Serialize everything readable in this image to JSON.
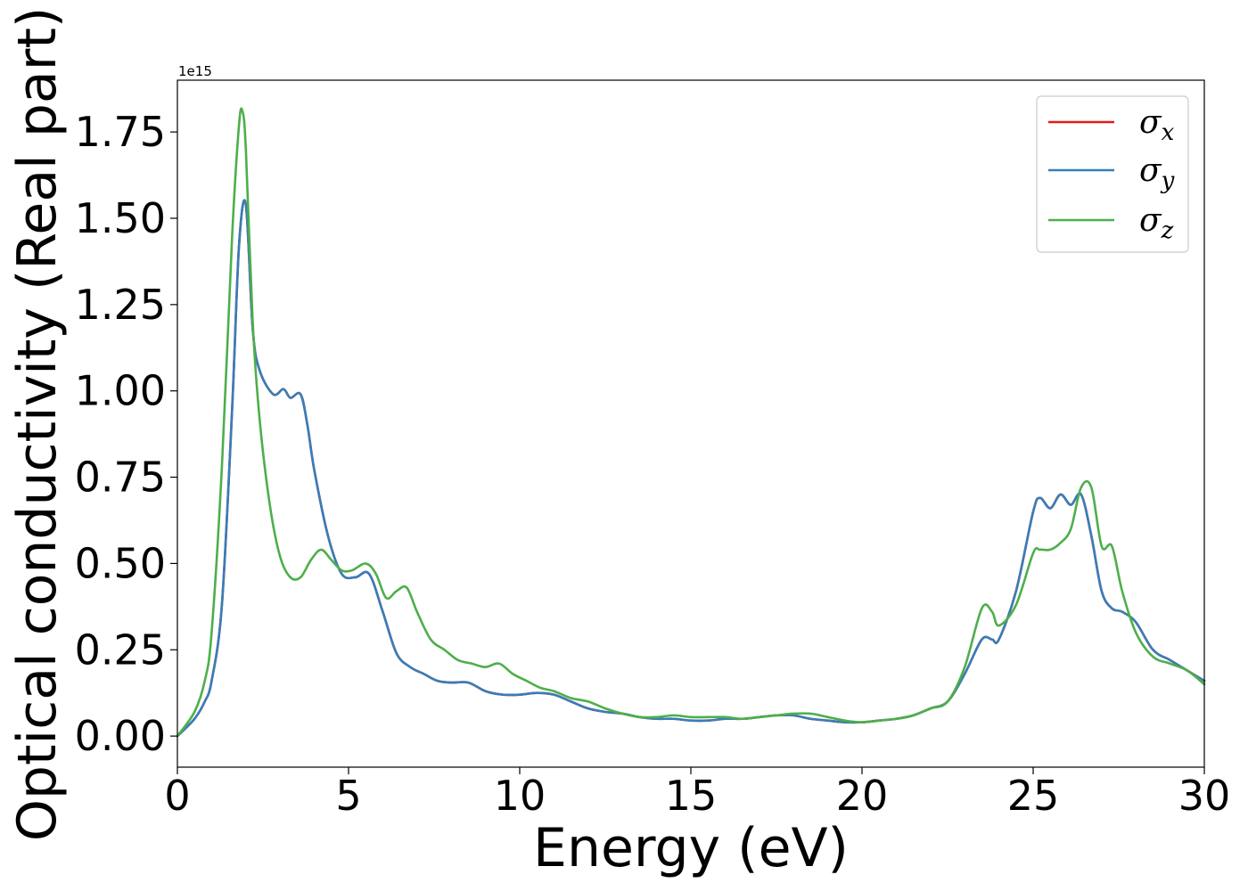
{
  "chart_data": {
    "type": "line",
    "xlabel": "Energy (eV)",
    "ylabel": "Optical conductivity (Real part)",
    "y_scale_label": "1e15",
    "xlim": [
      0,
      30
    ],
    "ylim": [
      -0.09,
      1.9
    ],
    "x_ticks": [
      0,
      5,
      10,
      15,
      20,
      25,
      30
    ],
    "x_tick_labels": [
      "0",
      "5",
      "10",
      "15",
      "20",
      "25",
      "30"
    ],
    "y_ticks": [
      0,
      0.25,
      0.5,
      0.75,
      1.0,
      1.25,
      1.5,
      1.75
    ],
    "y_tick_labels": [
      "0.00",
      "0.25",
      "0.50",
      "0.75",
      "1.00",
      "1.25",
      "1.50",
      "1.75"
    ],
    "grid": false,
    "legend_position": "top-right",
    "legend": [
      {
        "base": "σ",
        "sub": "x",
        "color": "#e41a1c"
      },
      {
        "base": "σ",
        "sub": "y",
        "color": "#377eb8"
      },
      {
        "base": "σ",
        "sub": "z",
        "color": "#4daf4a"
      }
    ],
    "series": [
      {
        "name": "σx",
        "color": "#e41a1c",
        "x": [
          0,
          0.5,
          0.8,
          1.0,
          1.3,
          1.6,
          1.8,
          2.0,
          2.2,
          2.4,
          2.8,
          3.1,
          3.3,
          3.6,
          3.8,
          4.0,
          4.4,
          4.8,
          5.2,
          5.6,
          6.0,
          6.4,
          6.8,
          7.2,
          7.6,
          8.0,
          8.5,
          9.0,
          9.5,
          10.0,
          10.5,
          11.0,
          11.5,
          12.0,
          12.5,
          13.0,
          13.5,
          14.0,
          14.5,
          15.0,
          15.5,
          16.0,
          16.5,
          17.0,
          17.5,
          18.0,
          18.5,
          19.0,
          19.5,
          20.0,
          20.5,
          21.0,
          21.5,
          22.0,
          22.5,
          23.0,
          23.5,
          23.8,
          24.0,
          24.5,
          25.0,
          25.2,
          25.5,
          25.8,
          26.1,
          26.4,
          26.7,
          27.0,
          27.3,
          27.6,
          28.0,
          28.5,
          29.0,
          29.5,
          30.0
        ],
        "y": [
          0,
          0.05,
          0.1,
          0.16,
          0.38,
          0.95,
          1.42,
          1.54,
          1.18,
          1.06,
          0.99,
          1.005,
          0.98,
          0.99,
          0.9,
          0.77,
          0.58,
          0.47,
          0.46,
          0.47,
          0.36,
          0.24,
          0.2,
          0.18,
          0.16,
          0.155,
          0.155,
          0.13,
          0.12,
          0.12,
          0.125,
          0.12,
          0.1,
          0.08,
          0.07,
          0.065,
          0.055,
          0.05,
          0.05,
          0.045,
          0.045,
          0.05,
          0.05,
          0.055,
          0.06,
          0.06,
          0.05,
          0.045,
          0.04,
          0.04,
          0.045,
          0.05,
          0.06,
          0.08,
          0.1,
          0.18,
          0.28,
          0.28,
          0.28,
          0.42,
          0.65,
          0.69,
          0.66,
          0.7,
          0.67,
          0.7,
          0.58,
          0.42,
          0.37,
          0.36,
          0.33,
          0.25,
          0.22,
          0.19,
          0.16
        ]
      },
      {
        "name": "σy",
        "color": "#377eb8",
        "x": [
          0,
          0.5,
          0.8,
          1.0,
          1.3,
          1.6,
          1.8,
          2.0,
          2.2,
          2.4,
          2.8,
          3.1,
          3.3,
          3.6,
          3.8,
          4.0,
          4.4,
          4.8,
          5.2,
          5.6,
          6.0,
          6.4,
          6.8,
          7.2,
          7.6,
          8.0,
          8.5,
          9.0,
          9.5,
          10.0,
          10.5,
          11.0,
          11.5,
          12.0,
          12.5,
          13.0,
          13.5,
          14.0,
          14.5,
          15.0,
          15.5,
          16.0,
          16.5,
          17.0,
          17.5,
          18.0,
          18.5,
          19.0,
          19.5,
          20.0,
          20.5,
          21.0,
          21.5,
          22.0,
          22.5,
          23.0,
          23.5,
          23.8,
          24.0,
          24.5,
          25.0,
          25.2,
          25.5,
          25.8,
          26.1,
          26.4,
          26.7,
          27.0,
          27.3,
          27.6,
          28.0,
          28.5,
          29.0,
          29.5,
          30.0
        ],
        "y": [
          0,
          0.05,
          0.1,
          0.16,
          0.38,
          0.95,
          1.42,
          1.54,
          1.18,
          1.06,
          0.99,
          1.005,
          0.98,
          0.99,
          0.9,
          0.77,
          0.58,
          0.47,
          0.46,
          0.47,
          0.36,
          0.24,
          0.2,
          0.18,
          0.16,
          0.155,
          0.155,
          0.13,
          0.12,
          0.12,
          0.125,
          0.12,
          0.1,
          0.08,
          0.07,
          0.065,
          0.055,
          0.05,
          0.05,
          0.045,
          0.045,
          0.05,
          0.05,
          0.055,
          0.06,
          0.06,
          0.05,
          0.045,
          0.04,
          0.04,
          0.045,
          0.05,
          0.06,
          0.08,
          0.1,
          0.18,
          0.28,
          0.28,
          0.28,
          0.42,
          0.65,
          0.69,
          0.66,
          0.7,
          0.67,
          0.7,
          0.58,
          0.42,
          0.37,
          0.36,
          0.33,
          0.25,
          0.22,
          0.19,
          0.16
        ]
      },
      {
        "name": "σz",
        "color": "#4daf4a",
        "x": [
          0,
          0.5,
          0.8,
          1.0,
          1.3,
          1.6,
          1.8,
          1.9,
          2.0,
          2.2,
          2.4,
          2.7,
          3.0,
          3.3,
          3.6,
          3.9,
          4.2,
          4.5,
          4.8,
          5.1,
          5.5,
          5.8,
          6.1,
          6.4,
          6.7,
          7.0,
          7.4,
          7.8,
          8.2,
          8.6,
          9.0,
          9.4,
          9.8,
          10.2,
          10.6,
          11.0,
          11.5,
          12.0,
          12.5,
          13.0,
          13.5,
          14.0,
          14.5,
          15.0,
          15.5,
          16.0,
          16.5,
          17.0,
          17.5,
          18.0,
          18.5,
          19.0,
          19.5,
          20.0,
          20.5,
          21.0,
          21.5,
          22.0,
          22.5,
          23.0,
          23.5,
          23.8,
          24.0,
          24.5,
          25.0,
          25.2,
          25.5,
          25.8,
          26.1,
          26.4,
          26.7,
          27.0,
          27.3,
          27.6,
          28.0,
          28.5,
          29.0,
          29.5,
          30.0
        ],
        "y": [
          0,
          0.07,
          0.16,
          0.3,
          0.78,
          1.45,
          1.77,
          1.81,
          1.7,
          1.2,
          0.92,
          0.67,
          0.52,
          0.46,
          0.46,
          0.51,
          0.54,
          0.51,
          0.48,
          0.48,
          0.5,
          0.47,
          0.4,
          0.42,
          0.43,
          0.36,
          0.28,
          0.25,
          0.22,
          0.21,
          0.2,
          0.21,
          0.18,
          0.16,
          0.14,
          0.13,
          0.11,
          0.1,
          0.08,
          0.065,
          0.055,
          0.055,
          0.06,
          0.055,
          0.055,
          0.055,
          0.05,
          0.055,
          0.06,
          0.065,
          0.065,
          0.055,
          0.045,
          0.04,
          0.045,
          0.05,
          0.06,
          0.08,
          0.1,
          0.2,
          0.37,
          0.36,
          0.32,
          0.38,
          0.53,
          0.54,
          0.54,
          0.56,
          0.6,
          0.72,
          0.72,
          0.55,
          0.55,
          0.42,
          0.3,
          0.23,
          0.21,
          0.19,
          0.15
        ]
      }
    ]
  }
}
